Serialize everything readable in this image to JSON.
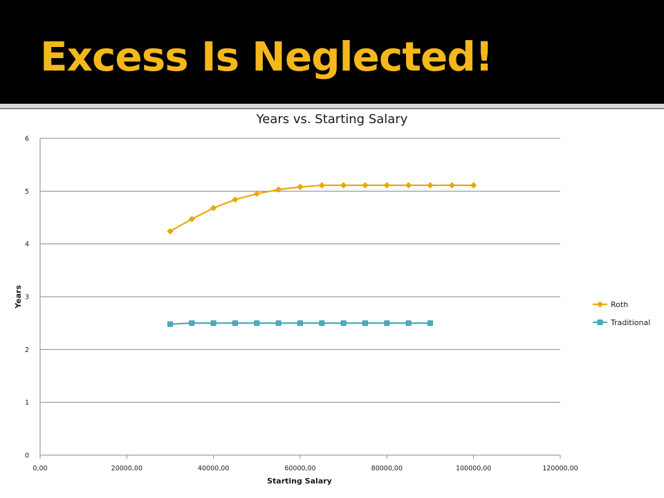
{
  "slide": {
    "title": "Excess Is Neglected!",
    "title_color": "#f5b81c",
    "header_color": "#000000"
  },
  "chart_data": {
    "type": "line",
    "title": "Years vs. Starting Salary",
    "xlabel": "Starting Salary",
    "ylabel": "Years",
    "xlim": [
      0,
      120000
    ],
    "ylim": [
      0,
      6
    ],
    "x_ticks": [
      "0,00",
      "20000,00",
      "40000,00",
      "60000,00",
      "80000,00",
      "100000,00",
      "120000,00"
    ],
    "y_ticks": [
      "0",
      "1",
      "2",
      "3",
      "4",
      "5",
      "6"
    ],
    "x_tick_values": [
      0,
      20000,
      40000,
      60000,
      80000,
      100000,
      120000
    ],
    "y_tick_values": [
      0,
      1,
      2,
      3,
      4,
      5,
      6
    ],
    "grid": true,
    "legend_position": "right",
    "series": [
      {
        "name": "Roth",
        "color": "#e8a90c",
        "marker": "diamond",
        "x": [
          30000,
          35000,
          40000,
          45000,
          50000,
          55000,
          60000,
          65000,
          70000,
          75000,
          80000,
          85000,
          90000,
          95000,
          100000
        ],
        "values": [
          4.24,
          4.47,
          4.68,
          4.84,
          4.95,
          5.03,
          5.08,
          5.11,
          5.11,
          5.11,
          5.11,
          5.11,
          5.11,
          5.11,
          5.11
        ]
      },
      {
        "name": "Traditional",
        "color": "#4bacc6",
        "marker": "square",
        "x": [
          30000,
          35000,
          40000,
          45000,
          50000,
          55000,
          60000,
          65000,
          70000,
          75000,
          80000,
          85000,
          90000
        ],
        "values": [
          2.48,
          2.5,
          2.5,
          2.5,
          2.5,
          2.5,
          2.5,
          2.5,
          2.5,
          2.5,
          2.5,
          2.5,
          2.5
        ]
      }
    ]
  }
}
